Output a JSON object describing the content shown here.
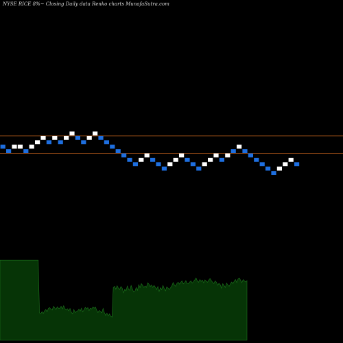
{
  "header": {
    "title": "NYSE RICE 8%~ Closing Daily data Renko charts MunafaSutra.com"
  },
  "colors": {
    "background": "#000000",
    "up_brick": "#ffffff",
    "down_brick": "#1e6fe0",
    "reference_line": "#c8641e",
    "volume_fill": "#063406",
    "volume_outline": "#1f7a1f",
    "label": "#dddddd"
  },
  "chart_data": [
    {
      "type": "renko",
      "title": "NYSE RICE 8%~ Closing Daily data Renko charts MunafaSutra.com",
      "brick_levels": [
        0,
        -1,
        0,
        0,
        -1,
        0,
        1,
        2,
        1,
        2,
        1,
        2,
        3,
        2,
        1,
        2,
        3,
        2,
        1,
        0,
        -1,
        -2,
        -3,
        -4,
        -3,
        -2,
        -3,
        -4,
        -5,
        -4,
        -3,
        -2,
        -3,
        -4,
        -5,
        -4,
        -3,
        -2,
        -3,
        -2,
        -1,
        0,
        -1,
        -2,
        -3,
        -4,
        -5,
        -6,
        -5,
        -4,
        -3,
        -4
      ],
      "brick_colors": [
        "down",
        "down",
        "up",
        "up",
        "down",
        "up",
        "up",
        "up",
        "down",
        "up",
        "down",
        "up",
        "up",
        "down",
        "down",
        "up",
        "up",
        "down",
        "down",
        "down",
        "down",
        "down",
        "down",
        "down",
        "up",
        "up",
        "down",
        "down",
        "down",
        "up",
        "up",
        "up",
        "down",
        "down",
        "down",
        "up",
        "up",
        "up",
        "down",
        "up",
        "down",
        "up",
        "down",
        "down",
        "down",
        "down",
        "down",
        "down",
        "up",
        "up",
        "up",
        "down"
      ],
      "reference_levels": [
        2.5,
        -1.5
      ]
    },
    {
      "type": "area",
      "title": "",
      "values": [
        29.7,
        29.7,
        29.7,
        29.7,
        29.7,
        29.7,
        29.7,
        29.7,
        29.7,
        29.7,
        29.7,
        29.7,
        29.7,
        29.7,
        29.7,
        29.7,
        29.7,
        29.7,
        29.7,
        29.7,
        29.7,
        29.7,
        29.7,
        29.7,
        29.7,
        29.7,
        29.7,
        29.7,
        29.7,
        29.7,
        29.7,
        10.2,
        9.8,
        10.6,
        9.9,
        10.9,
        11.4,
        10.6,
        11.8,
        12.1,
        11.5,
        11.2,
        12.6,
        12.0,
        11.4,
        12.4,
        11.8,
        11.9,
        12.6,
        11.6,
        12.8,
        11.7,
        11.2,
        11.7,
        10.9,
        11.8,
        10.4,
        9.8,
        11.4,
        10.3,
        10.6,
        10.9,
        11.5,
        10.8,
        11.9,
        10.5,
        11.3,
        12.2,
        11.6,
        12.1,
        11.0,
        11.9,
        11.6,
        12.3,
        11.9,
        12.3,
        11.1,
        10.3,
        11.1,
        10.6,
        10.2,
        11.8,
        10.2,
        9.2,
        10.1,
        9.0,
        9.8,
        8.9,
        8.6,
        19.6,
        20.0,
        18.9,
        20.2,
        19.3,
        18.8,
        19.9,
        19.3,
        17.6,
        18.9,
        18.3,
        20.1,
        18.9,
        18.5,
        20.3,
        19.0,
        17.9,
        18.2,
        19.6,
        18.5,
        20.6,
        19.5,
        21.0,
        20.4,
        19.6,
        20.1,
        19.6,
        21.3,
        20.8,
        19.9,
        20.5,
        19.6,
        20.3,
        19.7,
        18.8,
        19.9,
        18.1,
        19.5,
        18.8,
        20.3,
        19.2,
        18.3,
        19.8,
        19.3,
        18.8,
        19.5,
        20.2,
        21.4,
        20.5,
        20.0,
        21.1,
        21.5,
        20.8,
        21.5,
        22.0,
        20.9,
        21.3,
        22.1,
        21.0,
        20.9,
        21.6,
        22.0,
        21.2,
        21.8,
        22.4,
        23.1,
        22.0,
        21.5,
        22.5,
        21.8,
        22.3,
        21.3,
        22.4,
        21.9,
        21.5,
        22.3,
        22.9,
        22.1,
        21.5,
        21.0,
        22.0,
        21.5,
        20.4,
        21.1,
        20.6,
        19.3,
        21.0,
        20.3,
        19.6,
        21.2,
        20.5,
        20.0,
        20.9,
        21.6,
        21.0,
        21.9,
        22.5,
        21.4,
        22.7,
        23.1,
        22.2,
        21.4,
        22.5,
        22.0,
        21.6,
        22.1
      ]
    }
  ]
}
